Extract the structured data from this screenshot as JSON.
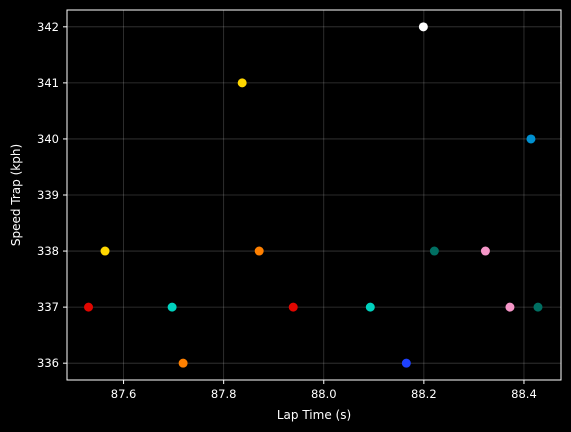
{
  "chart_data": {
    "type": "scatter",
    "title": "",
    "xlabel": "Lap Time (s)",
    "ylabel": "Speed Trap (kph)",
    "xlim": [
      87.487,
      88.474
    ],
    "ylim": [
      335.7,
      342.3
    ],
    "xticks": [
      87.6,
      87.8,
      88.0,
      88.2,
      88.4
    ],
    "xtick_labels": [
      "87.6",
      "87.8",
      "88.0",
      "88.2",
      "88.4"
    ],
    "yticks": [
      336,
      337,
      338,
      339,
      340,
      341,
      342
    ],
    "ytick_labels": [
      "336",
      "337",
      "338",
      "339",
      "340",
      "341",
      "342"
    ],
    "grid": true,
    "background": "#000000",
    "points": [
      {
        "x": 87.53,
        "y": 337,
        "color": "#e10600"
      },
      {
        "x": 87.563,
        "y": 338,
        "color": "#ffd700"
      },
      {
        "x": 87.697,
        "y": 337,
        "color": "#00d2be"
      },
      {
        "x": 87.719,
        "y": 336,
        "color": "#ff8000"
      },
      {
        "x": 87.837,
        "y": 341,
        "color": "#ffd700"
      },
      {
        "x": 87.871,
        "y": 338,
        "color": "#ff8000"
      },
      {
        "x": 87.939,
        "y": 337,
        "color": "#e10600"
      },
      {
        "x": 88.093,
        "y": 337,
        "color": "#00d2be"
      },
      {
        "x": 88.165,
        "y": 336,
        "color": "#1e41ff"
      },
      {
        "x": 88.199,
        "y": 342,
        "color": "#ffffff"
      },
      {
        "x": 88.221,
        "y": 338,
        "color": "#006f62"
      },
      {
        "x": 88.323,
        "y": 338,
        "color": "#f596c8"
      },
      {
        "x": 88.372,
        "y": 337,
        "color": "#f596c8"
      },
      {
        "x": 88.414,
        "y": 340,
        "color": "#0090d0"
      },
      {
        "x": 88.428,
        "y": 337,
        "color": "#006f62"
      }
    ]
  }
}
